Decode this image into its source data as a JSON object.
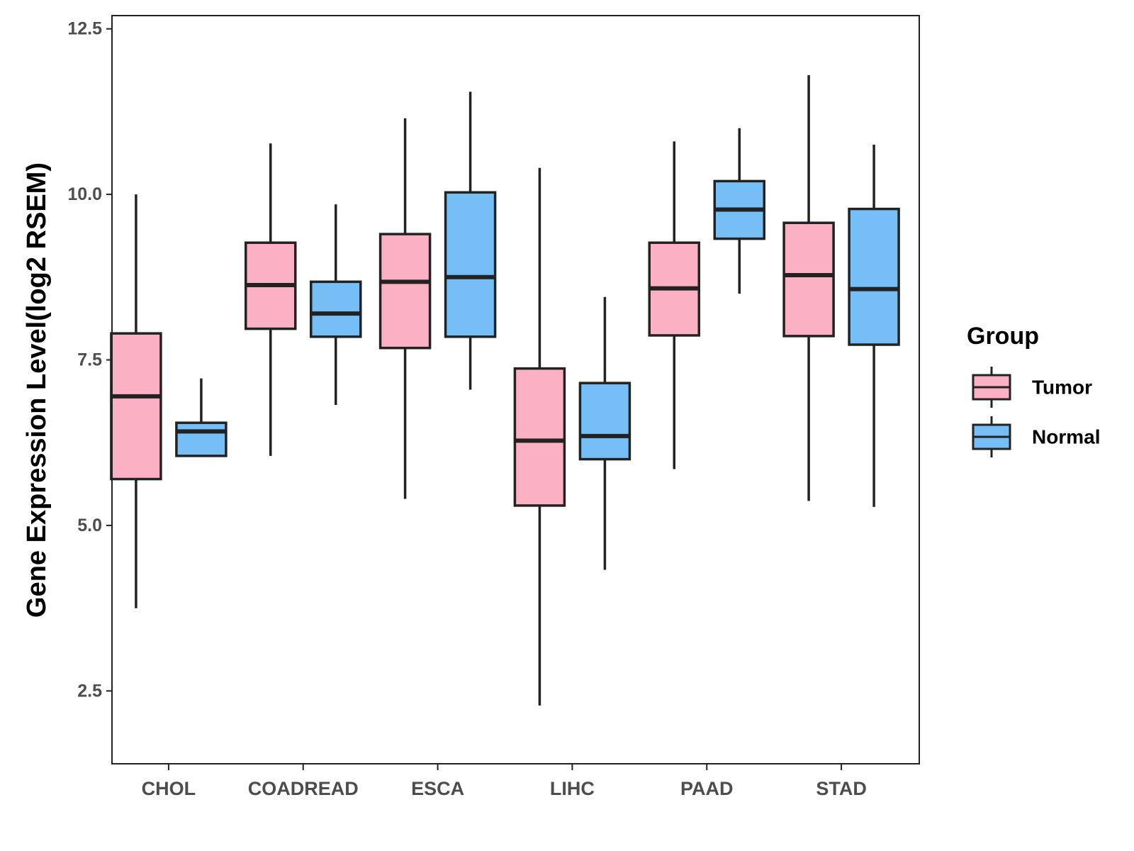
{
  "chart_data": {
    "type": "boxplot",
    "title": "",
    "xlabel": "",
    "ylabel": "Gene Expression Level(log2 RSEM)",
    "ylim": [
      1.4,
      12.7
    ],
    "yticks": [
      "2.5",
      "5.0",
      "7.5",
      "10.0",
      "12.5"
    ],
    "categories": [
      "CHOL",
      "COADREAD",
      "ESCA",
      "LIHC",
      "PAAD",
      "STAD"
    ],
    "legend": {
      "title": "Group",
      "position": "right",
      "entries": [
        "Tumor",
        "Normal"
      ]
    },
    "series": [
      {
        "name": "Tumor",
        "color": "#FBB1C3",
        "boxes": [
          {
            "category": "CHOL",
            "whisker_low": 3.75,
            "q1": 5.7,
            "median": 6.95,
            "q3": 7.9,
            "whisker_high": 10.0
          },
          {
            "category": "COADREAD",
            "whisker_low": 6.05,
            "q1": 7.97,
            "median": 8.63,
            "q3": 9.27,
            "whisker_high": 10.77
          },
          {
            "category": "ESCA",
            "whisker_low": 5.4,
            "q1": 7.68,
            "median": 8.68,
            "q3": 9.4,
            "whisker_high": 11.15
          },
          {
            "category": "LIHC",
            "whisker_low": 2.28,
            "q1": 5.3,
            "median": 6.28,
            "q3": 7.37,
            "whisker_high": 10.4
          },
          {
            "category": "PAAD",
            "whisker_low": 5.85,
            "q1": 7.87,
            "median": 8.58,
            "q3": 9.27,
            "whisker_high": 10.8
          },
          {
            "category": "STAD",
            "whisker_low": 5.37,
            "q1": 7.86,
            "median": 8.78,
            "q3": 9.57,
            "whisker_high": 11.8
          }
        ]
      },
      {
        "name": "Normal",
        "color": "#75BFF6",
        "boxes": [
          {
            "category": "CHOL",
            "whisker_low": 6.05,
            "q1": 6.05,
            "median": 6.42,
            "q3": 6.55,
            "whisker_high": 7.22
          },
          {
            "category": "COADREAD",
            "whisker_low": 6.82,
            "q1": 7.85,
            "median": 8.2,
            "q3": 8.68,
            "whisker_high": 9.85
          },
          {
            "category": "ESCA",
            "whisker_low": 7.05,
            "q1": 7.85,
            "median": 8.75,
            "q3": 10.03,
            "whisker_high": 11.55
          },
          {
            "category": "LIHC",
            "whisker_low": 4.33,
            "q1": 6.0,
            "median": 6.35,
            "q3": 7.15,
            "whisker_high": 8.45
          },
          {
            "category": "PAAD",
            "whisker_low": 8.5,
            "q1": 9.33,
            "median": 9.77,
            "q3": 10.2,
            "whisker_high": 11.0
          },
          {
            "category": "STAD",
            "whisker_low": 5.28,
            "q1": 7.73,
            "median": 8.57,
            "q3": 9.78,
            "whisker_high": 10.75
          }
        ]
      }
    ]
  }
}
